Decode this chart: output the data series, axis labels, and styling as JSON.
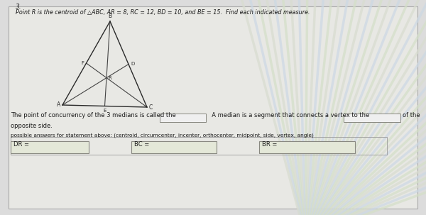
{
  "title_number": "3.",
  "problem_text": "Point R is the centroid of △ABC, AR = 8, RC = 12, BD = 10, and BE = 15.  Find each indicated measure.",
  "blank_text_1": "The point of concurrency of the 3 medians is called the",
  "blank_text_2": "  A median is a segment that connects a vertex to the",
  "blank_text_3": "of the",
  "blank_text_4": "opposite side.",
  "possible_text": "possible answers for statement above: (centroid, circumcenter, incenter, orthocenter, midpoint, side, vertex, angle)",
  "dr_label": "DR =",
  "bc_label": "BC =",
  "br_label": "BR =",
  "page_bg": "#dcdcdc",
  "paper_bg": "#e8e8e4",
  "text_color": "#1a1a1a",
  "box_fill": "#e4e8d8",
  "box_edge": "#888880",
  "tri_color": "#2a2a2a",
  "median_color": "#444444",
  "fan_color": "#c8d4b8",
  "fan_color2": "#d0d8e0"
}
